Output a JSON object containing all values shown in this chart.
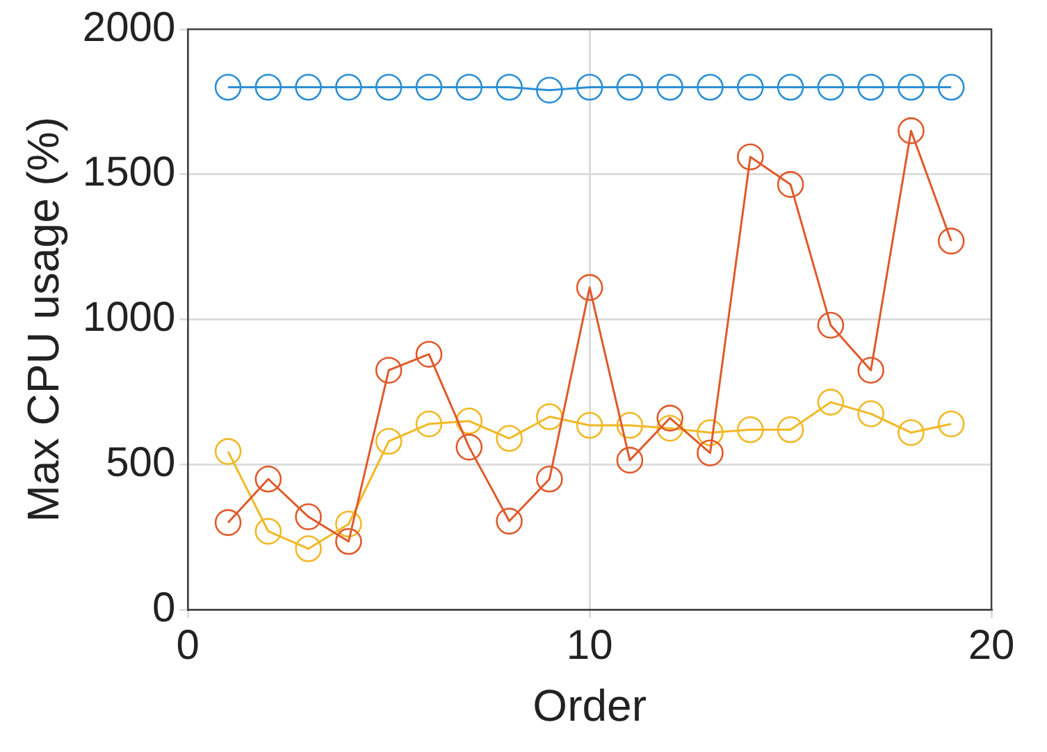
{
  "chart_data": {
    "type": "line",
    "xlabel": "Order",
    "ylabel": "Max CPU usage (%)",
    "x": [
      1,
      2,
      3,
      4,
      5,
      6,
      7,
      8,
      9,
      10,
      11,
      12,
      13,
      14,
      15,
      16,
      17,
      18,
      19
    ],
    "xlim": [
      0,
      20
    ],
    "xticks": [
      0,
      10,
      20
    ],
    "ylim": [
      0,
      2000
    ],
    "yticks": [
      0,
      500,
      1000,
      1500,
      2000
    ],
    "grid": true,
    "marker": "circle",
    "line_style": "solid",
    "series": [
      {
        "color": "#2b8fd6",
        "values": [
          1800,
          1800,
          1800,
          1800,
          1800,
          1800,
          1800,
          1800,
          1790,
          1800,
          1800,
          1800,
          1800,
          1800,
          1800,
          1800,
          1800,
          1800,
          1800
        ]
      },
      {
        "color": "#e0592a",
        "values": [
          300,
          450,
          320,
          235,
          825,
          880,
          560,
          305,
          450,
          1110,
          515,
          660,
          540,
          1560,
          1465,
          980,
          825,
          1650,
          1270
        ]
      },
      {
        "color": "#f2b824",
        "values": [
          545,
          270,
          210,
          295,
          580,
          640,
          650,
          590,
          665,
          635,
          635,
          625,
          610,
          620,
          620,
          715,
          675,
          610,
          640
        ]
      }
    ]
  }
}
